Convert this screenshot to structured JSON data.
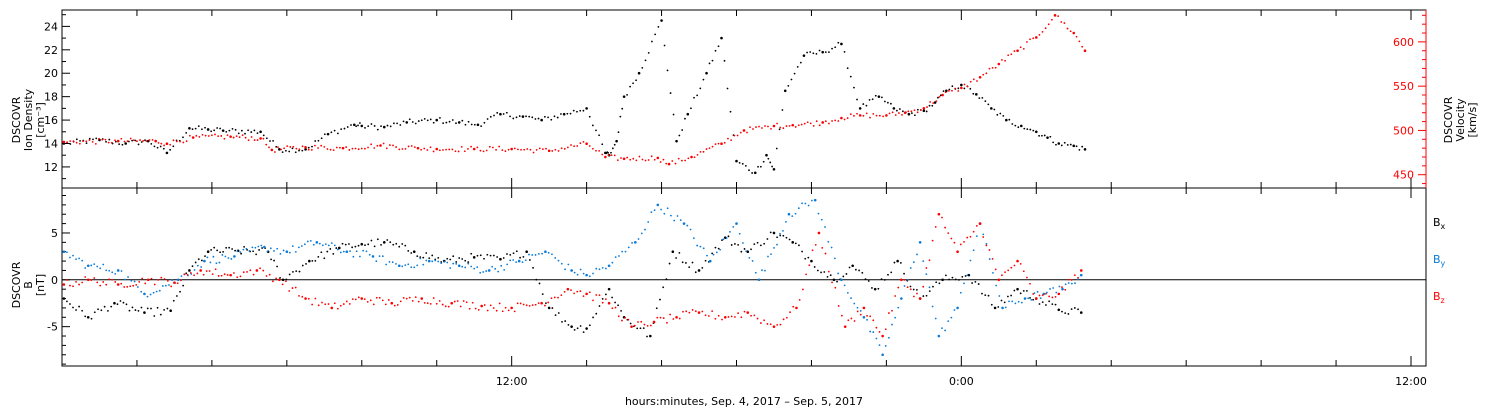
{
  "chart_data": [
    {
      "type": "scatter",
      "panel": "top",
      "grid": false,
      "x_unit": "hours since Sep. 4, 2017 00:00",
      "left_axis": {
        "label_lines": [
          "DSCOVR",
          "Ion Density",
          "[cm⁻³]"
        ],
        "ylim": [
          10.2,
          25.4
        ],
        "ticks": [
          12,
          14,
          16,
          18,
          20,
          22,
          24
        ],
        "color": "#000000"
      },
      "right_axis": {
        "label_lines": [
          "DSCOVR",
          "Velocity",
          "[km/s]"
        ],
        "ylim": [
          435,
          636
        ],
        "ticks": [
          450,
          500,
          550,
          600
        ],
        "color": "#ff0000"
      },
      "series": [
        {
          "name": "Ion Density",
          "axis": "left",
          "color": "#000000",
          "x": [
            0.05,
            1.0,
            1.7,
            2.3,
            2.8,
            3.4,
            3.9,
            4.3,
            5.3,
            5.8,
            6.5,
            7.1,
            7.8,
            8.0,
            8.6,
            9.2,
            10.0,
            10.6,
            11.1,
            11.7,
            12.3,
            12.8,
            13.4,
            14.0,
            14.5,
            14.6,
            14.8,
            15.0,
            15.4,
            16.0,
            16.4,
            16.7,
            17.2,
            17.6,
            18.0,
            18.5,
            18.8,
            19.0,
            19.3,
            19.8,
            20.3,
            20.8,
            21.3,
            21.8,
            22.2,
            22.6,
            23.0,
            23.3,
            23.6,
            24.0,
            24.4,
            24.8,
            25.2,
            25.6,
            26.0,
            26.3,
            26.6,
            27.0,
            27.3
          ],
          "y": [
            14.0,
            14.3,
            14.0,
            14.2,
            13.2,
            15.3,
            15.2,
            15.1,
            15.0,
            13.5,
            13.5,
            14.8,
            15.6,
            15.5,
            15.4,
            15.8,
            16.0,
            15.8,
            15.6,
            16.5,
            16.3,
            16.0,
            16.5,
            17.0,
            13.2,
            13.0,
            14.2,
            18.0,
            20.0,
            24.5,
            14.2,
            16.5,
            20.0,
            23.0,
            12.5,
            11.5,
            13.0,
            11.8,
            18.5,
            21.5,
            21.8,
            22.5,
            17.0,
            18.0,
            17.0,
            16.5,
            16.8,
            17.5,
            18.5,
            19.0,
            18.2,
            17.0,
            16.0,
            15.5,
            15.0,
            14.5,
            14.0,
            13.8,
            13.5
          ]
        },
        {
          "name": "Velocity",
          "axis": "right",
          "color": "#ff0000",
          "x": [
            0.05,
            1.5,
            2.5,
            2.8,
            3.5,
            4.5,
            5.3,
            5.6,
            6.5,
            7.5,
            8.5,
            9.5,
            10.0,
            11.0,
            12.0,
            13.0,
            14.0,
            14.5,
            15.0,
            15.9,
            16.2,
            16.8,
            17.6,
            18.2,
            19.0,
            19.5,
            20.3,
            20.8,
            21.3,
            22.0,
            22.5,
            23.0,
            23.5,
            24.0,
            24.5,
            25.0,
            25.5,
            26.0,
            26.5,
            27.0,
            27.3
          ],
          "y": [
            487,
            488,
            488,
            485,
            492,
            493,
            491,
            478,
            481,
            480,
            483,
            480,
            479,
            479,
            479,
            477,
            485,
            470,
            468,
            469,
            462,
            470,
            485,
            500,
            505,
            506,
            509,
            514,
            517,
            517,
            520,
            525,
            540,
            548,
            560,
            575,
            590,
            605,
            630,
            610,
            590
          ]
        }
      ]
    },
    {
      "type": "scatter",
      "panel": "bottom",
      "grid": false,
      "x_unit": "hours since Sep. 4, 2017 00:00",
      "y_axis": {
        "label_lines": [
          "DSCOVR",
          "B",
          "[nT]"
        ],
        "ylim": [
          -9.2,
          9.8
        ],
        "ticks": [
          -5,
          0,
          5
        ],
        "zero_line": true
      },
      "legend_position": "right",
      "series": [
        {
          "name": "Bx",
          "label_main": "B",
          "label_sub": "x",
          "color": "#000000",
          "x": [
            0.05,
            0.7,
            1.4,
            2.2,
            2.9,
            3.4,
            3.9,
            4.7,
            5.5,
            5.9,
            6.6,
            7.4,
            8.0,
            8.6,
            9.4,
            10.2,
            11.0,
            11.7,
            12.4,
            13.0,
            13.6,
            14.0,
            14.6,
            15.0,
            15.7,
            16.3,
            17.0,
            17.7,
            18.3,
            19.0,
            19.5,
            20.0,
            20.6,
            21.1,
            21.7,
            22.3,
            22.9,
            23.5,
            24.2,
            24.9,
            25.5,
            26.0,
            26.6,
            27.2
          ],
          "y": [
            -2.0,
            -4.0,
            -2.5,
            -3.5,
            -3.3,
            1.0,
            3.0,
            3.1,
            3.0,
            0.0,
            2.0,
            3.4,
            3.8,
            4.0,
            3.0,
            2.0,
            2.4,
            2.2,
            3.0,
            -3.0,
            -5.0,
            -5.2,
            -1.0,
            -4.0,
            -6.0,
            3.0,
            1.0,
            4.5,
            3.0,
            5.0,
            4.0,
            2.0,
            0.0,
            1.5,
            -1.0,
            2.0,
            -2.0,
            0.0,
            0.5,
            -3.0,
            -1.0,
            -2.0,
            -3.2,
            -3.5
          ]
        },
        {
          "name": "By",
          "label_main": "B",
          "label_sub": "y",
          "color": "#0a7bd8",
          "x": [
            0.05,
            0.7,
            1.5,
            2.2,
            3.1,
            3.8,
            4.6,
            5.4,
            6.0,
            6.8,
            7.6,
            8.3,
            9.0,
            9.8,
            10.6,
            11.4,
            12.2,
            12.9,
            13.6,
            14.0,
            14.6,
            15.3,
            15.9,
            16.6,
            17.3,
            18.0,
            18.6,
            19.4,
            20.1,
            20.8,
            21.4,
            21.9,
            22.4,
            22.9,
            23.4,
            23.9,
            24.5,
            25.1,
            25.7,
            26.2,
            26.7,
            27.2
          ],
          "y": [
            3.0,
            1.5,
            1.0,
            -1.5,
            0.0,
            2.0,
            2.5,
            3.5,
            3.0,
            4.0,
            3.0,
            2.5,
            1.5,
            2.0,
            1.5,
            1.0,
            2.0,
            3.0,
            1.0,
            0.5,
            1.5,
            4.0,
            8.0,
            6.0,
            2.0,
            6.0,
            0.0,
            7.0,
            8.5,
            0.0,
            -4.0,
            -8.0,
            -2.0,
            4.0,
            -6.0,
            -3.0,
            6.0,
            -3.0,
            -2.0,
            -1.5,
            -1.0,
            0.5
          ]
        },
        {
          "name": "Bz",
          "label_main": "B",
          "label_sub": "z",
          "color": "#ff0000",
          "x": [
            0.05,
            0.7,
            1.5,
            2.3,
            3.0,
            3.7,
            4.5,
            5.2,
            5.8,
            6.5,
            7.2,
            8.0,
            8.8,
            9.6,
            10.4,
            11.2,
            12.0,
            12.8,
            13.5,
            14.0,
            14.6,
            15.2,
            15.8,
            16.4,
            17.0,
            17.7,
            18.3,
            19.0,
            19.6,
            20.2,
            20.9,
            21.4,
            21.9,
            22.4,
            22.9,
            23.4,
            23.9,
            24.5,
            25.0,
            25.5,
            26.0,
            26.6,
            27.2
          ],
          "y": [
            -0.5,
            0.0,
            -0.5,
            0.0,
            -0.3,
            1.0,
            0.5,
            1.0,
            0.0,
            -2.0,
            -3.0,
            -2.0,
            -2.5,
            -2.0,
            -2.5,
            -2.8,
            -3.0,
            -2.5,
            -1.0,
            -1.5,
            -2.5,
            -5.0,
            -4.5,
            -4.0,
            -3.5,
            -4.0,
            -3.5,
            -5.0,
            -3.0,
            5.0,
            -5.0,
            -3.0,
            -6.0,
            0.0,
            -2.0,
            7.0,
            3.0,
            6.0,
            0.0,
            2.0,
            -2.0,
            -1.5,
            1.0
          ]
        }
      ]
    }
  ],
  "x_axis": {
    "xlim": [
      0.0,
      36.4
    ],
    "major_ticks": [
      12,
      24,
      36
    ],
    "tick_labels": [
      {
        "x": 12,
        "label": "12:00"
      },
      {
        "x": 24,
        "label": "0:00"
      },
      {
        "x": 36,
        "label": "12:00"
      }
    ],
    "title": "hours:minutes, Sep.  4, 2017 – Sep.  5, 2017"
  }
}
